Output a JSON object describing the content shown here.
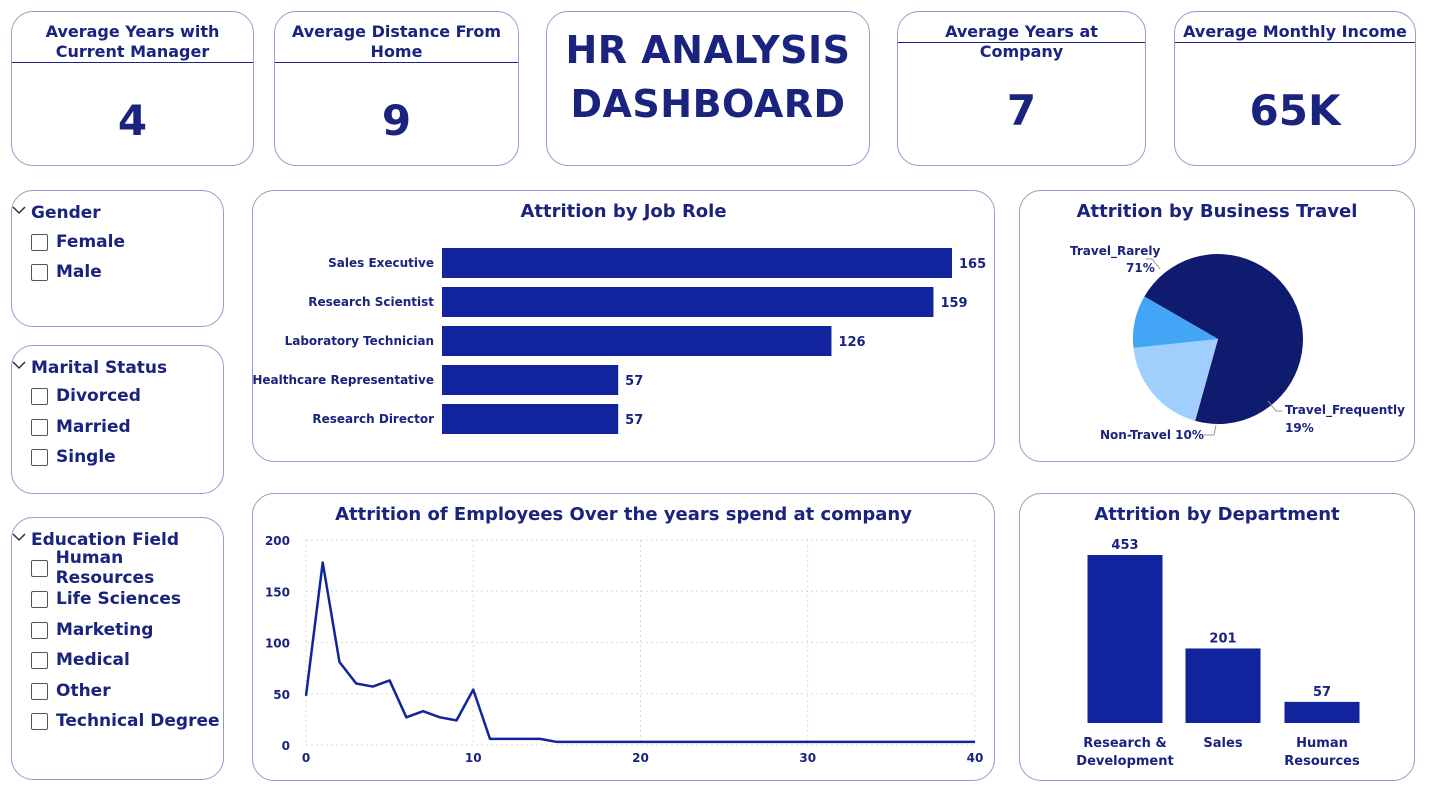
{
  "kpis": {
    "manager": {
      "title": "Average Years with Current Manager",
      "value": "4"
    },
    "distance": {
      "title": "Average Distance From Home",
      "value": "9"
    },
    "years": {
      "title": "Average Years at Company",
      "value": "7"
    },
    "income": {
      "title": "Average Monthly Income",
      "value": "65K"
    }
  },
  "dashboard_title": {
    "line1": "HR ANALYSIS",
    "line2": "DASHBOARD"
  },
  "slicers": {
    "gender": {
      "title": "Gender",
      "items": [
        "Female",
        "Male"
      ]
    },
    "marital": {
      "title": "Marital Status",
      "items": [
        "Divorced",
        "Married",
        "Single"
      ]
    },
    "education": {
      "title": "Education Field",
      "items": [
        "Human Resources",
        "Life Sciences",
        "Marketing",
        "Medical",
        "Other",
        "Technical Degree"
      ]
    }
  },
  "colors": {
    "bar": "#12239e",
    "pie_dark": "#0f1b6e",
    "pie_light": "#a0cffd",
    "pie_mid": "#42a5f5",
    "grid": "#d9d9d9"
  },
  "chart_data": [
    {
      "type": "bar",
      "orientation": "horizontal",
      "title": "Attrition by Job Role",
      "categories": [
        "Sales Executive",
        "Research Scientist",
        "Laboratory Technician",
        "Healthcare Representative",
        "Research Director"
      ],
      "values": [
        165,
        159,
        126,
        57,
        57
      ],
      "data_labels": [
        "165",
        "159",
        "126",
        "57",
        "57"
      ]
    },
    {
      "type": "pie",
      "title": "Attrition by Business Travel",
      "slices": [
        {
          "label": "Travel_Rarely",
          "pct_label": "71%",
          "value": 71
        },
        {
          "label": "Travel_Frequently",
          "pct_label": "19%",
          "value": 19
        },
        {
          "label": "Non-Travel 10%",
          "value": 10
        }
      ]
    },
    {
      "type": "line",
      "title": "Attrition of Employees Over the years spend at company",
      "x": [
        0,
        1,
        2,
        3,
        4,
        5,
        6,
        7,
        8,
        9,
        10,
        11,
        12,
        13,
        14,
        15,
        16,
        17,
        18,
        19,
        20,
        21,
        22,
        23,
        24,
        25,
        26,
        27,
        28,
        29,
        30,
        31,
        32,
        33,
        34,
        35,
        36,
        37,
        38,
        39,
        40
      ],
      "y": [
        48,
        178,
        81,
        60,
        57,
        63,
        27,
        33,
        27,
        24,
        54,
        6,
        6,
        6,
        6,
        3,
        3,
        3,
        3,
        3,
        3,
        3,
        3,
        3,
        3,
        3,
        3,
        3,
        3,
        3,
        3,
        3,
        3,
        3,
        3,
        3,
        3,
        3,
        3,
        3,
        3
      ],
      "xlim": [
        0,
        40
      ],
      "ylim": [
        0,
        200
      ],
      "xticks": [
        "0",
        "10",
        "20",
        "30",
        "40"
      ],
      "yticks": [
        "0",
        "50",
        "100",
        "150",
        "200"
      ],
      "grid": true
    },
    {
      "type": "bar",
      "orientation": "vertical",
      "title": "Attrition by Department",
      "categories": [
        "Research & Development",
        "Sales",
        "Human Resources"
      ],
      "category_lines": [
        [
          "Research &",
          "Development"
        ],
        [
          "Sales"
        ],
        [
          "Human",
          "Resources"
        ]
      ],
      "values": [
        453,
        201,
        57
      ],
      "data_labels": [
        "453",
        "201",
        "57"
      ]
    }
  ]
}
